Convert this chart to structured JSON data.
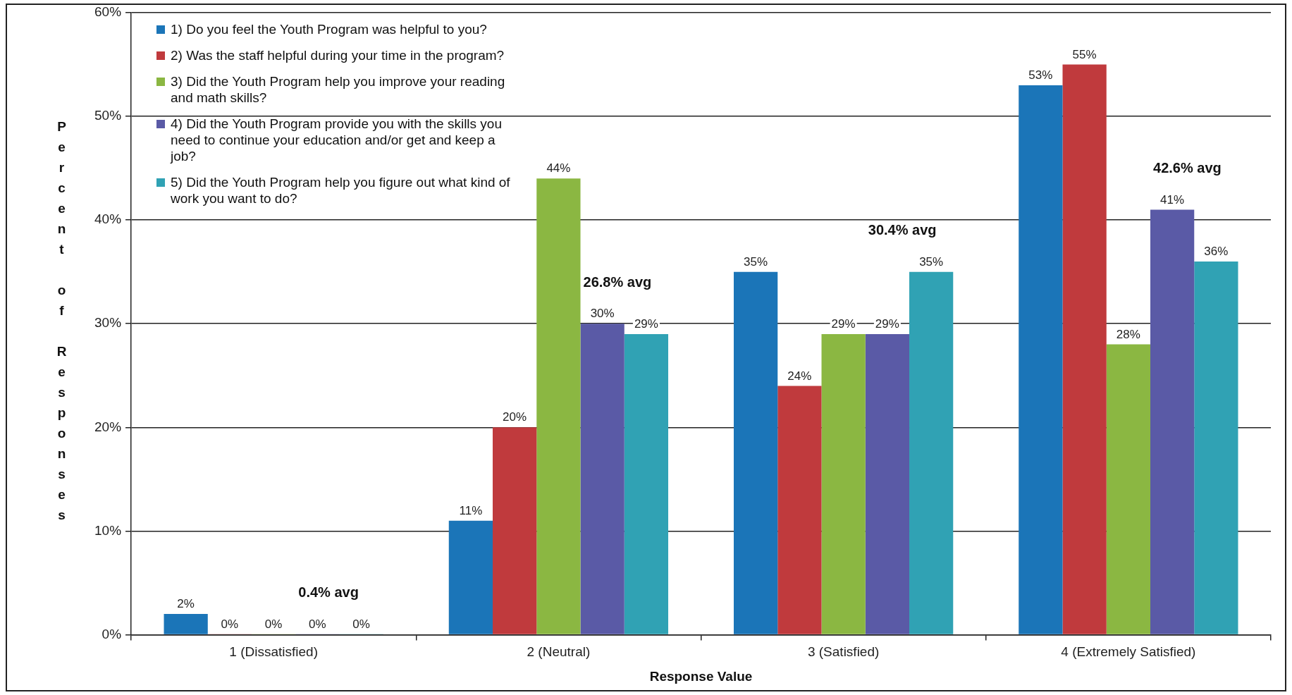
{
  "chart_data": {
    "type": "bar",
    "xlabel": "Response Value",
    "ylabel": "Percent of Responses",
    "categories": [
      "1 (Dissatisfied)",
      "2 (Neutral)",
      "3 (Satisfied)",
      "4 (Extremely Satisfied)"
    ],
    "series": [
      {
        "name": "1) Do you feel the Youth Program was helpful to you?",
        "color": "#1b75b8",
        "values": [
          2,
          11,
          35,
          53
        ],
        "value_labels": [
          "2%",
          "11%",
          "35%",
          "53%"
        ]
      },
      {
        "name": "2) Was the staff helpful during your time in the program?",
        "color": "#c03a3d",
        "values": [
          0,
          20,
          24,
          55
        ],
        "value_labels": [
          "0%",
          "20%",
          "24%",
          "55%"
        ]
      },
      {
        "name": "3) Did the Youth Program help you improve your reading and math skills?",
        "color": "#8bb742",
        "values": [
          0,
          44,
          29,
          28
        ],
        "value_labels": [
          "0%",
          "44%",
          "29%",
          "28%"
        ]
      },
      {
        "name": "4) Did the Youth Program provide you with the skills you need to continue your education and/or get and keep a job?",
        "color": "#5a5aa6",
        "values": [
          0,
          30,
          29,
          41
        ],
        "value_labels": [
          "0%",
          "30%",
          "29%",
          "41%"
        ]
      },
      {
        "name": "5) Did the Youth Program help you figure out what kind of work you want to do?",
        "color": "#30a2b4",
        "values": [
          0,
          29,
          35,
          36
        ],
        "value_labels": [
          "0%",
          "29%",
          "35%",
          "36%"
        ]
      }
    ],
    "ylim": [
      0,
      60
    ],
    "yticks": [
      {
        "value": 0,
        "label": "0%"
      },
      {
        "value": 10,
        "label": "10%"
      },
      {
        "value": 20,
        "label": "20%"
      },
      {
        "value": 30,
        "label": "30%"
      },
      {
        "value": 40,
        "label": "40%"
      },
      {
        "value": 50,
        "label": "50%"
      },
      {
        "value": 60,
        "label": "60%"
      }
    ],
    "grid": "y",
    "legend": "top left",
    "annotations": [
      "0.4% avg",
      "26.8% avg",
      "30.4% avg",
      "42.6% avg"
    ]
  }
}
